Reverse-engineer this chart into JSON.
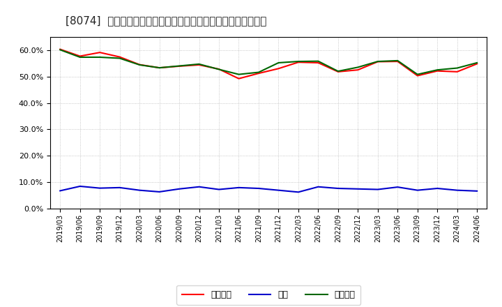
{
  "title_prefix": "[8074]",
  "title_body": "売上債権、在庫、買入債務の総資産に対する比率の推移",
  "x_labels": [
    "2019/03",
    "2019/06",
    "2019/09",
    "2019/12",
    "2020/03",
    "2020/06",
    "2020/09",
    "2020/12",
    "2021/03",
    "2021/06",
    "2021/09",
    "2021/12",
    "2022/03",
    "2022/06",
    "2022/09",
    "2022/12",
    "2023/03",
    "2023/06",
    "2023/09",
    "2023/12",
    "2024/03",
    "2024/06"
  ],
  "urikake": [
    60.3,
    57.7,
    59.1,
    57.4,
    54.5,
    53.3,
    53.9,
    54.4,
    52.8,
    49.2,
    51.2,
    53.0,
    55.4,
    55.2,
    51.8,
    52.5,
    55.6,
    55.7,
    50.3,
    52.1,
    51.8,
    54.8
  ],
  "zaiko": [
    6.8,
    8.5,
    7.8,
    8.0,
    7.0,
    6.4,
    7.5,
    8.3,
    7.3,
    8.0,
    7.7,
    7.0,
    6.3,
    8.3,
    7.7,
    7.5,
    7.3,
    8.2,
    7.0,
    7.7,
    7.0,
    6.7
  ],
  "kaiire": [
    60.1,
    57.3,
    57.3,
    56.9,
    54.4,
    53.3,
    54.0,
    54.7,
    52.7,
    50.8,
    51.6,
    55.2,
    55.7,
    55.8,
    52.0,
    53.5,
    55.7,
    56.0,
    50.8,
    52.5,
    53.2,
    55.2
  ],
  "color_urikake": "#ff0000",
  "color_zaiko": "#0000cc",
  "color_kaiire": "#006600",
  "label_urikake": "売上債権",
  "label_zaiko": "在庫",
  "label_kaiire": "買入債務",
  "ylim": [
    0,
    65
  ],
  "yticks": [
    0,
    10,
    20,
    30,
    40,
    50,
    60
  ],
  "bg_color": "#ffffff",
  "plot_bg_color": "#ffffff",
  "grid_color": "#999999",
  "border_color": "#000000",
  "title_fontsize": 11,
  "tick_fontsize": 8,
  "legend_fontsize": 9,
  "linewidth": 1.5
}
